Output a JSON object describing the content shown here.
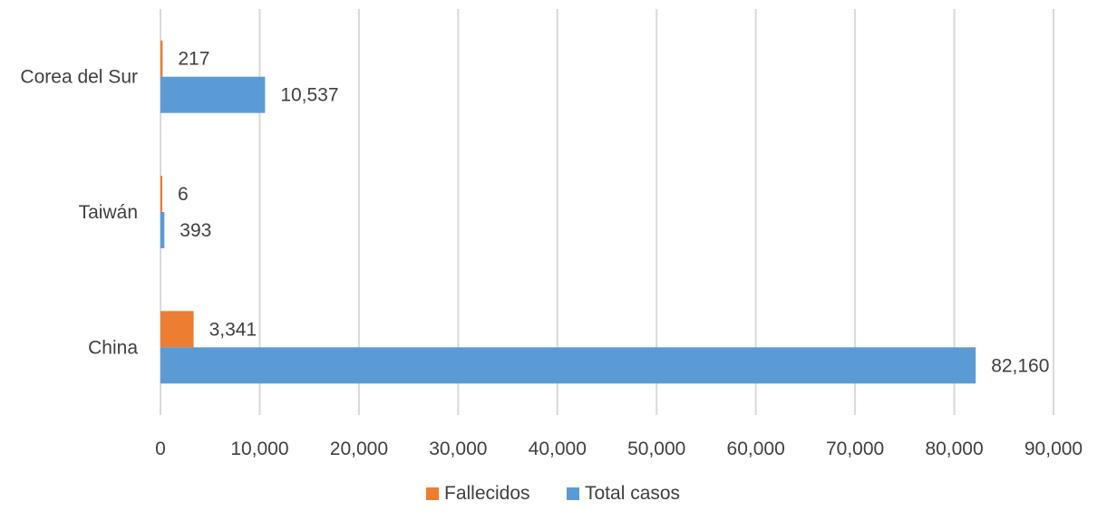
{
  "chart_data": {
    "type": "bar",
    "orientation": "horizontal",
    "categories": [
      "China",
      "Taiwán",
      "Corea del Sur"
    ],
    "series": [
      {
        "name": "Fallecidos",
        "values": [
          3341,
          6,
          217
        ],
        "labels": [
          "3,341",
          "6",
          "217"
        ],
        "color": "#ED7D31"
      },
      {
        "name": "Total casos",
        "values": [
          82160,
          393,
          10537
        ],
        "labels": [
          "82,160",
          "393",
          "10,537"
        ],
        "color": "#5B9BD5"
      }
    ],
    "xlim": [
      0,
      90000
    ],
    "xticks": [
      0,
      10000,
      20000,
      30000,
      40000,
      50000,
      60000,
      70000,
      80000,
      90000
    ],
    "xtick_labels": [
      "0",
      "10,000",
      "20,000",
      "30,000",
      "40,000",
      "50,000",
      "60,000",
      "70,000",
      "80,000",
      "90,000"
    ],
    "grid": true,
    "legend": "bottom",
    "title": "",
    "xlabel": "",
    "ylabel": ""
  },
  "colors": {
    "gridline": "#D9D9D9",
    "text": "#404040"
  }
}
